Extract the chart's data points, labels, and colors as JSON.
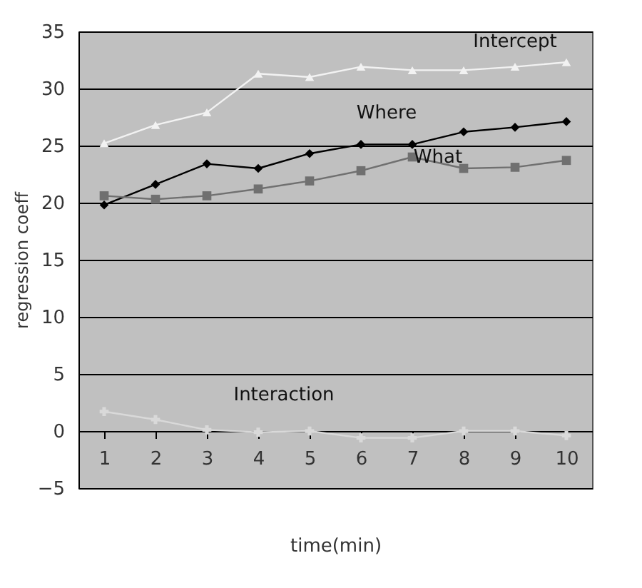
{
  "chart_data": {
    "type": "line",
    "xlabel": "time(min)",
    "ylabel": "regression coeff",
    "categories": [
      "1",
      "2",
      "3",
      "4",
      "5",
      "6",
      "7",
      "8",
      "9",
      "10"
    ],
    "series": [
      {
        "name": "Intercept",
        "color": "#f2f2f2",
        "marker": "triangle",
        "values": [
          25.2,
          26.8,
          27.9,
          31.3,
          31.0,
          31.9,
          31.6,
          31.6,
          31.9,
          32.3
        ]
      },
      {
        "name": "Where",
        "color": "#000000",
        "marker": "diamond",
        "values": [
          19.8,
          21.6,
          23.4,
          23.0,
          24.3,
          25.1,
          25.1,
          26.2,
          26.6,
          27.1
        ]
      },
      {
        "name": "What",
        "color": "#707070",
        "marker": "square",
        "values": [
          20.6,
          20.3,
          20.6,
          21.2,
          21.9,
          22.8,
          24.0,
          23.0,
          23.1,
          23.7
        ]
      },
      {
        "name": "Interaction",
        "color": "#d9d9d9",
        "marker": "cross",
        "values": [
          1.7,
          1.0,
          0.1,
          -0.1,
          0.0,
          -0.6,
          -0.6,
          0.0,
          0.0,
          -0.4
        ]
      }
    ],
    "ylim": [
      -5,
      35
    ],
    "yticks": [
      -5,
      0,
      5,
      10,
      15,
      20,
      25,
      30,
      35
    ],
    "grid": "y"
  }
}
